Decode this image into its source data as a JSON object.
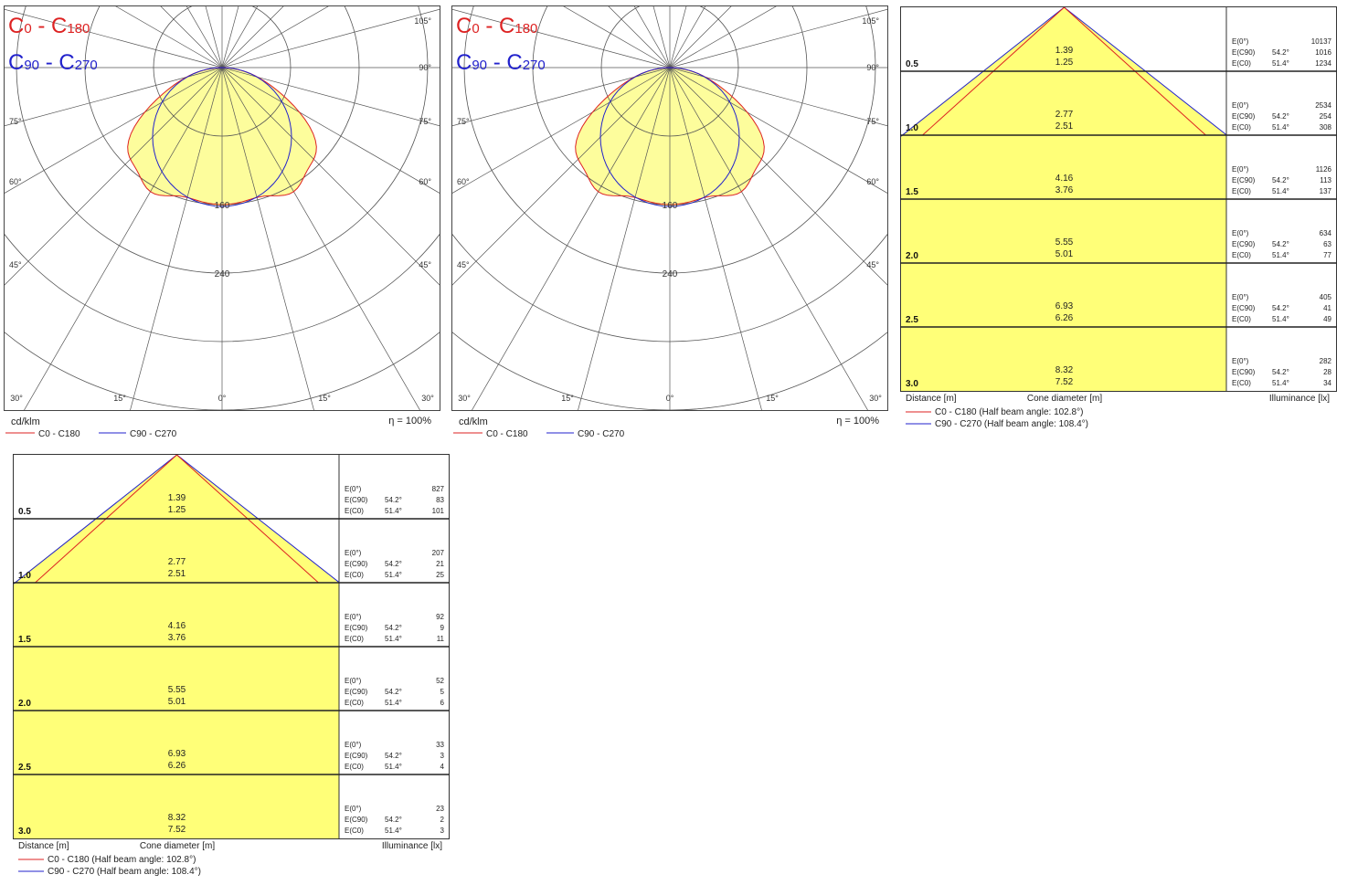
{
  "colors": {
    "c0_c180": "#dd2222",
    "c90_c270": "#2222cc",
    "fill": "#fdfd9c",
    "cone_fill": "#ffff78",
    "grid": "#555555"
  },
  "polar_charts": [
    {
      "legend_title_c0": {
        "c": "C",
        "a": "0",
        "dash": " - ",
        "c2": "C",
        "b": "180"
      },
      "legend_title_c90": {
        "c": "C",
        "a": "90",
        "dash": " - ",
        "c2": "C",
        "b": "270"
      },
      "radial_labels": [
        "160",
        "240"
      ],
      "angle_labels_right": [
        "105°",
        "90°",
        "75°",
        "60°",
        "45°"
      ],
      "angle_labels_left": [
        "75°",
        "60°",
        "45°"
      ],
      "bottom_labels": [
        "30°",
        "15°",
        "0°",
        "15°",
        "30°"
      ],
      "unit": "cd/klm",
      "efficiency": "η = 100%",
      "legend": [
        "C0 - C180",
        "C90 - C270"
      ]
    },
    {
      "legend_title_c0": {
        "c": "C",
        "a": "0",
        "dash": " - ",
        "c2": "C",
        "b": "180"
      },
      "legend_title_c90": {
        "c": "C",
        "a": "90",
        "dash": " - ",
        "c2": "C",
        "b": "270"
      },
      "radial_labels": [
        "160",
        "240"
      ],
      "angle_labels_right": [
        "105°",
        "90°",
        "75°",
        "60°",
        "45°"
      ],
      "angle_labels_left": [
        "75°",
        "60°",
        "45°"
      ],
      "bottom_labels": [
        "30°",
        "15°",
        "0°",
        "15°",
        "30°"
      ],
      "unit": "cd/klm",
      "efficiency": "η = 100%",
      "legend": [
        "C0 - C180",
        "C90 - C270"
      ]
    }
  ],
  "chart_data": [
    {
      "type": "table",
      "kind": "cone_diagram",
      "distance_label": "Distance [m]",
      "diameter_label": "Cone diameter [m]",
      "illuminance_label": "Illuminance [lx]",
      "legend": [
        "C0 - C180 (Half beam angle: 102.8°)",
        "C90 - C270 (Half beam angle: 108.4°)"
      ],
      "rows": [
        {
          "distance": "0.5",
          "d90": "1.39",
          "d0": "1.25",
          "e0": "10137",
          "e90": "1016",
          "e_c0": "1234"
        },
        {
          "distance": "1.0",
          "d90": "2.77",
          "d0": "2.51",
          "e0": "2534",
          "e90": "254",
          "e_c0": "308"
        },
        {
          "distance": "1.5",
          "d90": "4.16",
          "d0": "3.76",
          "e0": "1126",
          "e90": "113",
          "e_c0": "137"
        },
        {
          "distance": "2.0",
          "d90": "5.55",
          "d0": "5.01",
          "e0": "634",
          "e90": "63",
          "e_c0": "77"
        },
        {
          "distance": "2.5",
          "d90": "6.93",
          "d0": "6.26",
          "e0": "405",
          "e90": "41",
          "e_c0": "49"
        },
        {
          "distance": "3.0",
          "d90": "8.32",
          "d0": "7.52",
          "e0": "282",
          "e90": "28",
          "e_c0": "34"
        }
      ],
      "row_labels": {
        "e0": "E(0°)",
        "e90": "E(C90)",
        "e_c0": "E(C0)",
        "a90": "54.2°",
        "a0": "51.4°"
      }
    },
    {
      "type": "table",
      "kind": "cone_diagram",
      "distance_label": "Distance [m]",
      "diameter_label": "Cone diameter [m]",
      "illuminance_label": "Illuminance [lx]",
      "legend": [
        "C0 - C180 (Half beam angle: 102.8°)",
        "C90 - C270 (Half beam angle: 108.4°)"
      ],
      "rows": [
        {
          "distance": "0.5",
          "d90": "1.39",
          "d0": "1.25",
          "e0": "827",
          "e90": "83",
          "e_c0": "101"
        },
        {
          "distance": "1.0",
          "d90": "2.77",
          "d0": "2.51",
          "e0": "207",
          "e90": "21",
          "e_c0": "25"
        },
        {
          "distance": "1.5",
          "d90": "4.16",
          "d0": "3.76",
          "e0": "92",
          "e90": "9",
          "e_c0": "11"
        },
        {
          "distance": "2.0",
          "d90": "5.55",
          "d0": "5.01",
          "e0": "52",
          "e90": "5",
          "e_c0": "6"
        },
        {
          "distance": "2.5",
          "d90": "6.93",
          "d0": "6.26",
          "e0": "33",
          "e90": "3",
          "e_c0": "4"
        },
        {
          "distance": "3.0",
          "d90": "8.32",
          "d0": "7.52",
          "e0": "23",
          "e90": "2",
          "e_c0": "3"
        }
      ],
      "row_labels": {
        "e0": "E(0°)",
        "e90": "E(C90)",
        "e_c0": "E(C0)",
        "a90": "54.2°",
        "a0": "51.4°"
      }
    }
  ]
}
